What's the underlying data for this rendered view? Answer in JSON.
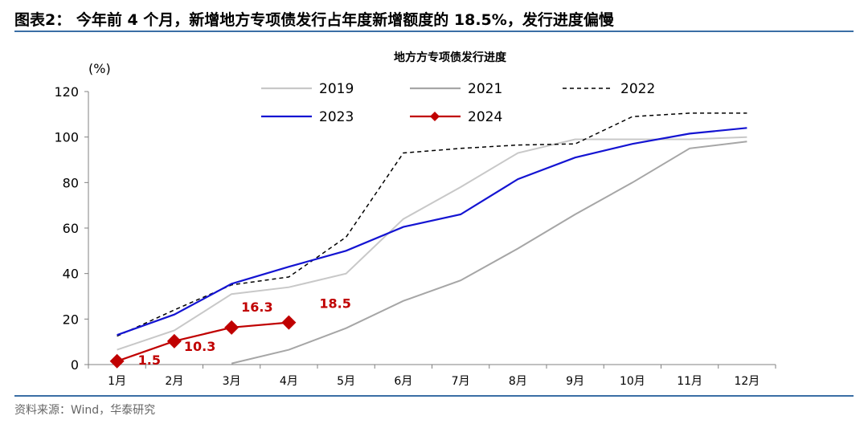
{
  "figure": {
    "title": "图表2： 今年前 4 个月，新增地方专项债发行占年度新增额度的 18.5%，发行进度偏慢",
    "source": "资料来源：Wind，华泰研究"
  },
  "chart_data": {
    "type": "line",
    "title": "地方方专项债发行进度",
    "ylabel": "(%)",
    "xlabel": "",
    "ylim": [
      0,
      120
    ],
    "yticks": [
      0,
      20,
      40,
      60,
      80,
      100,
      120
    ],
    "categories": [
      "1月",
      "2月",
      "3月",
      "4月",
      "5月",
      "6月",
      "7月",
      "8月",
      "9月",
      "10月",
      "11月",
      "12月"
    ],
    "grid": false,
    "legend": "top",
    "series": [
      {
        "name": "2019",
        "color": "#c8c8c8",
        "style": "solid",
        "values": [
          6.5,
          15,
          31,
          34,
          40,
          64,
          78,
          93,
          99,
          99,
          99,
          100
        ]
      },
      {
        "name": "2021",
        "color": "#a6a6a6",
        "style": "solid",
        "values": [
          null,
          null,
          0.5,
          6.5,
          16,
          28,
          37,
          51,
          66,
          80,
          95,
          98
        ]
      },
      {
        "name": "2022",
        "color": "#000000",
        "style": "dashed",
        "values": [
          12.5,
          24,
          35,
          38.5,
          56,
          93,
          95,
          96.5,
          97,
          109,
          110.5,
          110.5
        ]
      },
      {
        "name": "2023",
        "color": "#1414d2",
        "style": "solid",
        "values": [
          13,
          22,
          35.5,
          43,
          50,
          60.5,
          66,
          81.5,
          91,
          97,
          101.5,
          104
        ]
      },
      {
        "name": "2024",
        "color": "#c00000",
        "style": "solid-diamond",
        "values": [
          1.5,
          10.3,
          16.3,
          18.5,
          null,
          null,
          null,
          null,
          null,
          null,
          null,
          null
        ]
      }
    ],
    "data_labels": [
      {
        "series": "2024",
        "index": 0,
        "text": "1.5"
      },
      {
        "series": "2024",
        "index": 1,
        "text": "10.3"
      },
      {
        "series": "2024",
        "index": 2,
        "text": "16.3"
      },
      {
        "series": "2024",
        "index": 3,
        "text": "18.5"
      }
    ]
  }
}
